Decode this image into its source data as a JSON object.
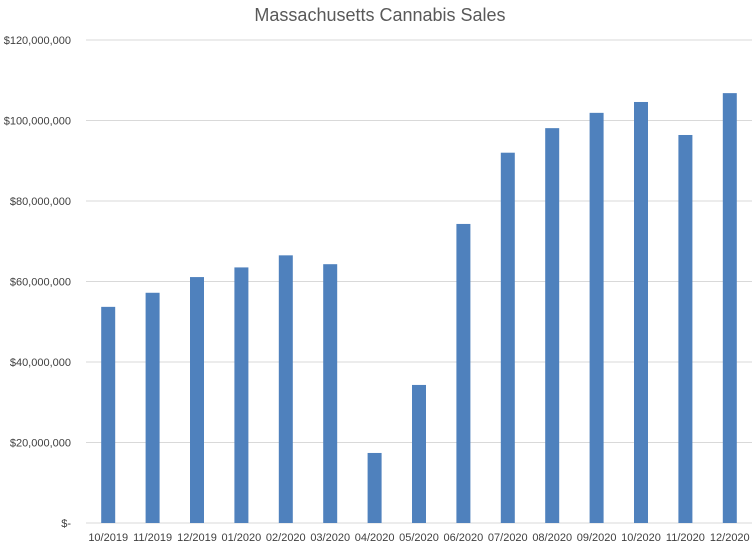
{
  "chart_data": {
    "type": "bar",
    "title": "Massachusetts Cannabis Sales",
    "xlabel": "",
    "ylabel": "",
    "categories": [
      "10/2019",
      "11/2019",
      "12/2019",
      "01/2020",
      "02/2020",
      "03/2020",
      "04/2020",
      "05/2020",
      "06/2020",
      "07/2020",
      "08/2020",
      "09/2020",
      "10/2020",
      "11/2020",
      "12/2020"
    ],
    "values": [
      53700000,
      57200000,
      61100000,
      63500000,
      66500000,
      64300000,
      17400000,
      34300000,
      74300000,
      92000000,
      98100000,
      101900000,
      104600000,
      96400000,
      106800000
    ],
    "ylim": [
      0,
      120000000
    ],
    "yticks": [
      0,
      20000000,
      40000000,
      60000000,
      80000000,
      100000000,
      120000000
    ],
    "ytick_labels": [
      "$-",
      "$20,000,000",
      "$40,000,000",
      "$60,000,000",
      "$80,000,000",
      "$100,000,000",
      "$120,000,000"
    ],
    "grid": true,
    "legend": "none",
    "bar_color": "#4F81BD",
    "grid_color": "#D9D9D9"
  }
}
